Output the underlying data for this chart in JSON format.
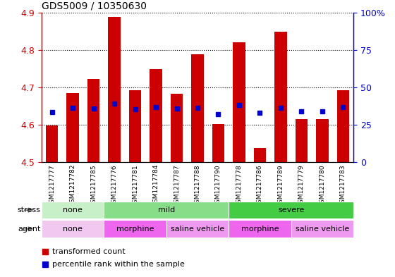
{
  "title": "GDS5009 / 10350630",
  "samples": [
    "GSM1217777",
    "GSM1217782",
    "GSM1217785",
    "GSM1217776",
    "GSM1217781",
    "GSM1217784",
    "GSM1217787",
    "GSM1217788",
    "GSM1217790",
    "GSM1217778",
    "GSM1217786",
    "GSM1217789",
    "GSM1217779",
    "GSM1217780",
    "GSM1217783"
  ],
  "bar_values": [
    4.598,
    4.685,
    4.723,
    4.888,
    4.693,
    4.748,
    4.683,
    4.788,
    4.601,
    4.82,
    4.537,
    4.848,
    4.614,
    4.614,
    4.692
  ],
  "blue_values": [
    4.634,
    4.645,
    4.643,
    4.657,
    4.641,
    4.647,
    4.643,
    4.645,
    4.628,
    4.652,
    4.632,
    4.645,
    4.636,
    4.636,
    4.646
  ],
  "ymin": 4.5,
  "ymax": 4.9,
  "yticks": [
    4.5,
    4.6,
    4.7,
    4.8,
    4.9
  ],
  "right_yticks": [
    0,
    25,
    50,
    75,
    100
  ],
  "bar_color": "#cc0000",
  "blue_color": "#0000cc",
  "stress_groups": [
    {
      "label": "none",
      "start": 0,
      "end": 3,
      "color": "#c8f0c8"
    },
    {
      "label": "mild",
      "start": 3,
      "end": 9,
      "color": "#88dd88"
    },
    {
      "label": "severe",
      "start": 9,
      "end": 15,
      "color": "#44cc44"
    }
  ],
  "agent_groups": [
    {
      "label": "none",
      "start": 0,
      "end": 3,
      "color": "#f0c8f0"
    },
    {
      "label": "morphine",
      "start": 3,
      "end": 6,
      "color": "#ee66ee"
    },
    {
      "label": "saline vehicle",
      "start": 6,
      "end": 9,
      "color": "#f099f0"
    },
    {
      "label": "morphine",
      "start": 9,
      "end": 12,
      "color": "#ee66ee"
    },
    {
      "label": "saline vehicle",
      "start": 12,
      "end": 15,
      "color": "#f099f0"
    }
  ],
  "legend_red": "transformed count",
  "legend_blue": "percentile rank within the sample",
  "stress_label": "stress",
  "agent_label": "agent",
  "bar_color_left_axis": "#cc0000",
  "right_axis_color": "#0000cc",
  "bar_width": 0.6
}
